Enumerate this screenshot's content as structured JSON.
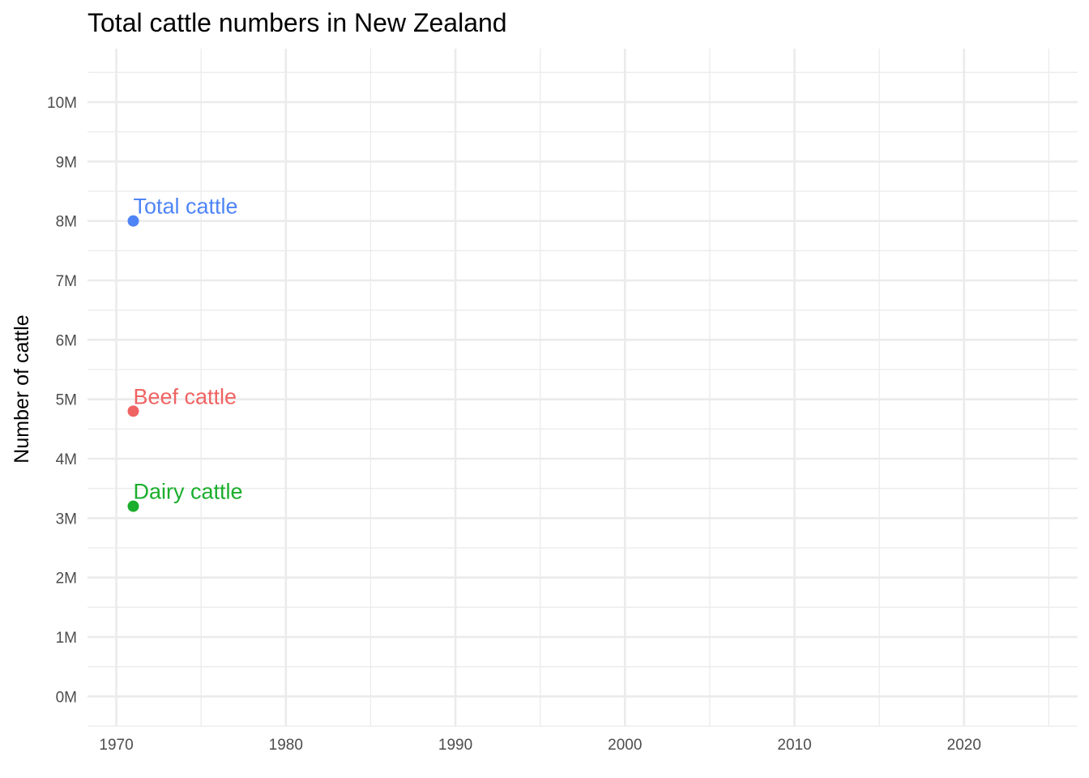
{
  "chart_data": {
    "type": "scatter",
    "title": "Total cattle numbers in New Zealand",
    "xlabel": "",
    "ylabel": "Number of cattle",
    "xlim": [
      1968.3,
      2026.7
    ],
    "ylim": [
      -0.5,
      10.9
    ],
    "x_ticks": [
      1970,
      1980,
      1990,
      2000,
      2010,
      2020
    ],
    "x_tick_labels": [
      "1970",
      "1980",
      "1990",
      "2000",
      "2010",
      "2020"
    ],
    "y_ticks": [
      0,
      1,
      2,
      3,
      4,
      5,
      6,
      7,
      8,
      9,
      10
    ],
    "y_tick_labels": [
      "0M",
      "1M",
      "2M",
      "3M",
      "4M",
      "5M",
      "6M",
      "7M",
      "8M",
      "9M",
      "10M"
    ],
    "y_unit": "millions",
    "grid": true,
    "legend": "none",
    "series": [
      {
        "name": "Total cattle",
        "color": "#4f84f7",
        "x": [
          1971
        ],
        "values": [
          8.0
        ]
      },
      {
        "name": "Beef cattle",
        "color": "#f06363",
        "x": [
          1971
        ],
        "values": [
          4.8
        ]
      },
      {
        "name": "Dairy cattle",
        "color": "#1aae2c",
        "x": [
          1971
        ],
        "values": [
          3.2
        ]
      }
    ]
  }
}
